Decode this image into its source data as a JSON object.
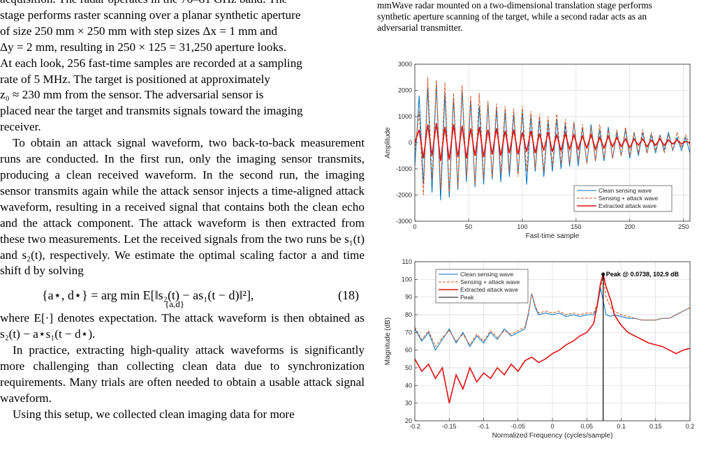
{
  "left_column": {
    "para1_lines": [
      "acquisition. The radar operates in the 76–81 GHz band. The",
      "stage performs raster scanning over a planar synthetic aperture",
      "of size 250 mm × 250 mm with step sizes Δx = 1 mm and",
      "Δy = 2 mm, resulting in 250 × 125 = 31,250 aperture looks.",
      "At each look, 256 fast-time samples are recorded at a sampling",
      "rate of 5 MHz. The target is positioned at approximately",
      "z₀ ≈ 230 mm from the sensor. The adversarial sensor is",
      "placed near the target and transmits signals toward the imaging",
      "receiver."
    ],
    "para2": "To obtain an attack signal waveform, two back-to-back measurement runs are conducted. In the first run, only the imaging sensor transmits, producing a clean received waveform. In the second run, the imaging sensor transmits again while the attack sensor injects a time-aligned attack waveform, resulting in a received signal that contains both the clean echo and the attack component. The attack waveform is then extracted from these two measurements. Let the received signals from the two runs be s₁(t) and s₂(t), respectively. We estimate the optimal scaling factor a and time shift d by solving",
    "equation": "{a⋆, d⋆} = arg min E[‖s₂(t) − as₁(t − d)‖²],",
    "equation_sub": "{a,d}",
    "equation_number": "(18)",
    "para3": "where E[·] denotes expectation. The attack waveform is then obtained as s₂(t) − a⋆s₁(t − d⋆).",
    "para4": "In practice, extracting high-quality attack waveforms is significantly more challenging than collecting clean data due to synchronization requirements. Many trials are often needed to obtain a usable attack signal waveform.",
    "para5": "Using this setup, we collected clean imaging data for more"
  },
  "caption_lines": [
    "mmWave radar mounted on a two-dimensional translation stage performs",
    "synthetic aperture scanning of the target, while a second radar acts as an",
    "adversarial transmitter."
  ],
  "chart_data": [
    {
      "type": "line",
      "xlabel": "Fast-time sample",
      "ylabel": "Amplitude",
      "xlim": [
        0,
        256
      ],
      "ylim": [
        -3000,
        3000
      ],
      "xticks": [
        0,
        50,
        100,
        150,
        200,
        250
      ],
      "yticks": [
        -3000,
        -2000,
        -1000,
        0,
        1000,
        2000,
        3000
      ],
      "grid": true,
      "legend_position": "bottom-right",
      "series": [
        {
          "name": "Clean sensing wave",
          "color": "#0072BD",
          "style": "solid",
          "x": [
            0,
            4,
            8,
            12,
            16,
            20,
            24,
            28,
            32,
            36,
            40,
            44,
            48,
            52,
            56,
            60,
            64,
            68,
            72,
            76,
            80,
            84,
            88,
            92,
            96,
            100,
            104,
            108,
            112,
            116,
            120,
            124,
            128,
            132,
            136,
            140,
            144,
            148,
            152,
            156,
            160,
            164,
            168,
            172,
            176,
            180,
            184,
            188,
            192,
            196,
            200,
            204,
            208,
            212,
            216,
            220,
            224,
            228,
            232,
            236,
            240,
            244,
            248,
            252,
            256
          ],
          "y": [
            -900,
            1800,
            -1600,
            2100,
            -1900,
            2300,
            -2200,
            1900,
            -2100,
            1700,
            -1800,
            2000,
            -1500,
            1600,
            -1700,
            1400,
            -1600,
            1500,
            -1400,
            1300,
            -1500,
            1200,
            -1300,
            1100,
            -1200,
            1200,
            -1600,
            1000,
            -1100,
            900,
            -1300,
            800,
            -1100,
            900,
            -1000,
            700,
            -900,
            800,
            -900,
            600,
            -800,
            700,
            -700,
            500,
            -700,
            600,
            -600,
            400,
            -500,
            500,
            -600,
            400,
            -500,
            400,
            -400,
            300,
            -400,
            300,
            -300,
            400,
            -300,
            200,
            -300,
            200,
            -400
          ]
        },
        {
          "name": "Sensing + attack wave",
          "color": "#D95319",
          "style": "dashed",
          "x": [
            0,
            4,
            8,
            12,
            16,
            20,
            24,
            28,
            32,
            36,
            40,
            44,
            48,
            52,
            56,
            60,
            64,
            68,
            72,
            76,
            80,
            84,
            88,
            92,
            96,
            100,
            104,
            108,
            112,
            116,
            120,
            124,
            128,
            132,
            136,
            140,
            144,
            148,
            152,
            156,
            160,
            164,
            168,
            172,
            176,
            180,
            184,
            188,
            192,
            196,
            200,
            204,
            208,
            212,
            216,
            220,
            224,
            228,
            232,
            236,
            240,
            244,
            248,
            252,
            256
          ],
          "y": [
            -300,
            1200,
            -2000,
            2500,
            -1400,
            2400,
            -1800,
            2300,
            -1900,
            1900,
            -1700,
            2200,
            -1300,
            1800,
            -1600,
            1900,
            -1400,
            1600,
            -1300,
            1500,
            -1200,
            1400,
            -1100,
            1300,
            -1300,
            1400,
            -1100,
            1200,
            -1000,
            1100,
            -1100,
            1000,
            -900,
            1100,
            -800,
            900,
            -800,
            800,
            -700,
            700,
            -800,
            600,
            -700,
            700,
            -600,
            500,
            -600,
            500,
            -500,
            600,
            -500,
            400,
            -400,
            500,
            -400,
            400,
            -300,
            300,
            -400,
            300,
            -300,
            400,
            -200,
            300,
            -100
          ]
        },
        {
          "name": "Extracted attack wave",
          "color": "#E01010",
          "style": "solid",
          "x": [
            0,
            4,
            8,
            12,
            16,
            20,
            24,
            28,
            32,
            36,
            40,
            44,
            48,
            52,
            56,
            60,
            64,
            68,
            72,
            76,
            80,
            84,
            88,
            92,
            96,
            100,
            104,
            108,
            112,
            116,
            120,
            124,
            128,
            132,
            136,
            140,
            144,
            148,
            152,
            156,
            160,
            164,
            168,
            172,
            176,
            180,
            184,
            188,
            192,
            196,
            200,
            204,
            208,
            212,
            216,
            220,
            224,
            228,
            232,
            236,
            240,
            244,
            248,
            252,
            256
          ],
          "y": [
            0,
            500,
            -600,
            700,
            -500,
            750,
            -700,
            600,
            -650,
            700,
            -550,
            650,
            -600,
            550,
            -500,
            600,
            -550,
            500,
            -450,
            550,
            -500,
            450,
            -400,
            500,
            -450,
            400,
            -350,
            450,
            -400,
            350,
            -300,
            400,
            -350,
            300,
            -300,
            350,
            -250,
            300,
            -250,
            250,
            -200,
            300,
            -250,
            200,
            -200,
            250,
            -150,
            200,
            -150,
            150,
            -200,
            150,
            -100,
            150,
            -150,
            100,
            -100,
            150,
            -100,
            100,
            -50,
            100,
            -50,
            50,
            0
          ]
        }
      ]
    },
    {
      "type": "line",
      "xlabel": "Normalized Frequency (cycles/sample)",
      "ylabel": "Magnitude (dB)",
      "xlim": [
        -0.2,
        0.2
      ],
      "ylim": [
        20,
        110
      ],
      "xticks": [
        -0.2,
        -0.15,
        -0.1,
        -0.05,
        0,
        0.05,
        0.1,
        0.15,
        0.2
      ],
      "yticks": [
        20,
        30,
        40,
        50,
        60,
        70,
        80,
        90,
        100,
        110
      ],
      "grid": true,
      "legend_position": "top-left",
      "annotation": "Peak @ 0.0738, 102.9 dB",
      "peak": {
        "x": 0.0738,
        "y": 102.9
      },
      "series": [
        {
          "name": "Clean sensing wave",
          "color": "#0072BD",
          "style": "solid",
          "x": [
            -0.2,
            -0.19,
            -0.18,
            -0.17,
            -0.16,
            -0.15,
            -0.14,
            -0.13,
            -0.12,
            -0.11,
            -0.1,
            -0.09,
            -0.08,
            -0.07,
            -0.06,
            -0.05,
            -0.04,
            -0.035,
            -0.03,
            -0.025,
            -0.02,
            -0.01,
            0,
            0.01,
            0.02,
            0.03,
            0.04,
            0.05,
            0.06,
            0.065,
            0.07,
            0.0738,
            0.078,
            0.085,
            0.09,
            0.1,
            0.11,
            0.12,
            0.13,
            0.14,
            0.15,
            0.16,
            0.17,
            0.18,
            0.19,
            0.2
          ],
          "y": [
            72,
            65,
            70,
            60,
            66,
            72,
            64,
            70,
            62,
            68,
            64,
            70,
            66,
            72,
            68,
            70,
            72,
            80,
            92,
            84,
            80,
            81,
            80,
            81,
            79,
            80,
            79,
            80,
            80,
            84,
            95,
            88,
            80,
            79,
            80,
            79,
            78,
            78,
            77,
            77,
            77,
            78,
            78,
            80,
            82,
            84
          ]
        },
        {
          "name": "Sensing + attack wave",
          "color": "#D95319",
          "style": "dashed",
          "x": [
            -0.2,
            -0.19,
            -0.18,
            -0.17,
            -0.16,
            -0.15,
            -0.14,
            -0.13,
            -0.12,
            -0.11,
            -0.1,
            -0.09,
            -0.08,
            -0.07,
            -0.06,
            -0.05,
            -0.04,
            -0.035,
            -0.03,
            -0.025,
            -0.02,
            -0.01,
            0,
            0.01,
            0.02,
            0.03,
            0.04,
            0.05,
            0.06,
            0.065,
            0.07,
            0.0738,
            0.078,
            0.085,
            0.09,
            0.1,
            0.11,
            0.12,
            0.13,
            0.14,
            0.15,
            0.16,
            0.17,
            0.18,
            0.19,
            0.2
          ],
          "y": [
            73,
            66,
            71,
            62,
            67,
            71,
            65,
            69,
            63,
            69,
            65,
            71,
            67,
            71,
            69,
            71,
            73,
            81,
            92,
            85,
            81,
            82,
            81,
            82,
            80,
            81,
            80,
            81,
            81,
            86,
            96,
            101,
            90,
            84,
            82,
            80,
            79,
            78,
            77,
            77,
            77,
            78,
            78,
            80,
            82,
            84
          ]
        },
        {
          "name": "Extracted attack wave",
          "color": "#E01010",
          "style": "solid",
          "x": [
            -0.2,
            -0.19,
            -0.18,
            -0.17,
            -0.16,
            -0.15,
            -0.14,
            -0.13,
            -0.12,
            -0.11,
            -0.1,
            -0.09,
            -0.08,
            -0.07,
            -0.06,
            -0.05,
            -0.04,
            -0.03,
            -0.02,
            -0.01,
            0,
            0.01,
            0.02,
            0.03,
            0.04,
            0.05,
            0.06,
            0.065,
            0.07,
            0.0738,
            0.078,
            0.085,
            0.09,
            0.1,
            0.11,
            0.12,
            0.13,
            0.14,
            0.15,
            0.16,
            0.17,
            0.18,
            0.19,
            0.2
          ],
          "y": [
            55,
            48,
            52,
            44,
            50,
            30,
            46,
            38,
            50,
            42,
            47,
            44,
            50,
            46,
            52,
            48,
            54,
            56,
            53,
            55,
            58,
            60,
            63,
            65,
            68,
            70,
            75,
            85,
            98,
            102.9,
            96,
            88,
            80,
            74,
            70,
            68,
            66,
            64,
            63,
            62,
            60,
            58,
            60,
            61
          ]
        },
        {
          "name": "Peak",
          "color": "#000000",
          "style": "solid",
          "x": [
            0.0738,
            0.0738
          ],
          "y": [
            20,
            102.9
          ]
        }
      ]
    }
  ]
}
